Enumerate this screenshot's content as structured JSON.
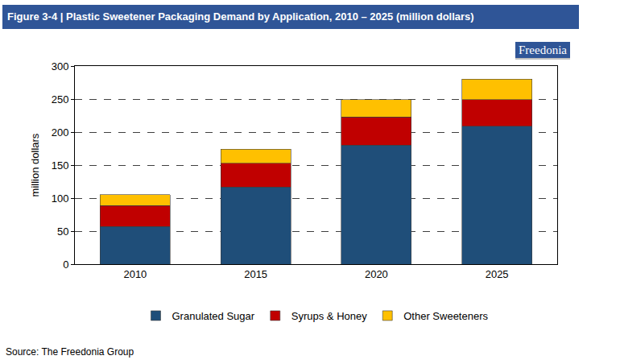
{
  "chart_data": {
    "type": "bar",
    "title": "Figure 3-4 | Plastic Sweetener Packaging Demand by Application, 2010 – 2025 (million dollars)",
    "logo": "Freedonia",
    "source": "Source: The Freedonia Group",
    "y_label": "million dollars",
    "categories": [
      "2010",
      "2015",
      "2020",
      "2025"
    ],
    "series": [
      {
        "name": "Granulated Sugar",
        "color": "#1f4e79",
        "values": [
          57,
          117,
          180,
          209
        ]
      },
      {
        "name": "Syrups & Honey",
        "color": "#c00000",
        "values": [
          32,
          36,
          43,
          40
        ]
      },
      {
        "name": "Other Sweeteners",
        "color": "#ffc000",
        "values": [
          16,
          21,
          26,
          31
        ]
      }
    ],
    "stacked": true,
    "ylim": [
      0,
      300
    ],
    "yticks": [
      0,
      50,
      100,
      150,
      200,
      250,
      300
    ],
    "grid": true,
    "legend": "bottom"
  }
}
